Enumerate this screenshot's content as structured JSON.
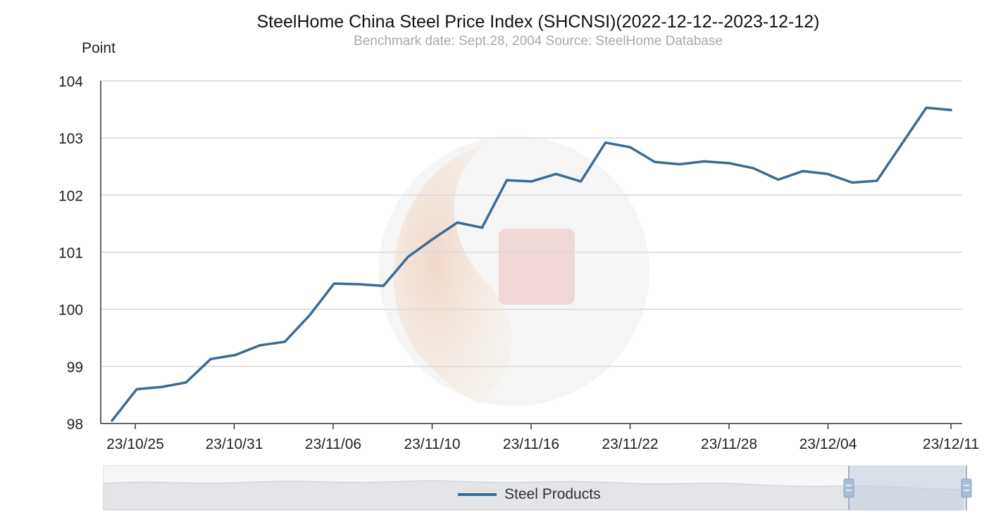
{
  "chart_data": {
    "type": "line",
    "title": "SteelHome China Steel Price Index (SHCNSI)(2022-12-12--2023-12-12)",
    "subtitle": "Benchmark date: Sept.28, 2004 Source: SteelHome Database",
    "ylabel": "Point",
    "xlabel": "",
    "ylim": [
      98,
      104
    ],
    "yticks": [
      "98",
      "99",
      "100",
      "101",
      "102",
      "103",
      "104"
    ],
    "xtick_labels": [
      "23/10/25",
      "23/10/31",
      "23/11/06",
      "23/11/10",
      "23/11/16",
      "23/11/22",
      "23/11/28",
      "23/12/04",
      "23/12/11"
    ],
    "grid": true,
    "legend_position": "bottom-center",
    "series": [
      {
        "name": "Steel Products",
        "color": "#3a6b96",
        "values": [
          98.05,
          98.6,
          98.64,
          98.72,
          99.13,
          99.2,
          99.37,
          99.43,
          99.89,
          100.45,
          100.44,
          100.41,
          100.92,
          101.23,
          101.52,
          101.43,
          102.26,
          102.24,
          102.37,
          102.24,
          102.92,
          102.84,
          102.58,
          102.54,
          102.59,
          102.56,
          102.47,
          102.27,
          102.42,
          102.37,
          102.22,
          102.25,
          102.89,
          103.53,
          103.49
        ]
      }
    ],
    "watermark": "seal-logo-icon"
  }
}
